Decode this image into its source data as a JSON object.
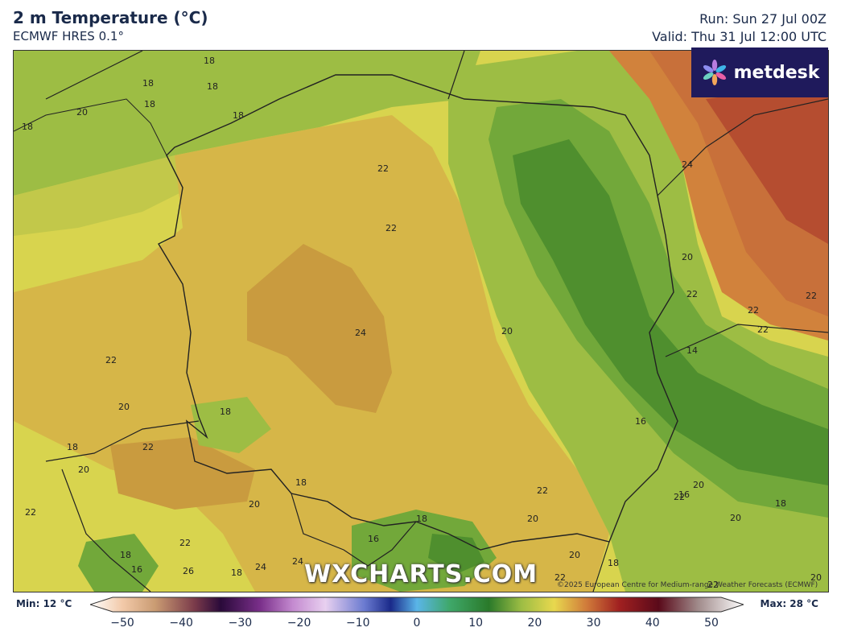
{
  "header": {
    "title": "2 m Temperature (°C)",
    "model": "ECMWF HRES 0.1°",
    "run": "Run: Sun 27 Jul 00Z",
    "valid": "Valid: Thu 31 Jul 12:00 UTC"
  },
  "logo": {
    "text": "metdesk"
  },
  "watermark": "WXCHARTS.COM",
  "credit": "©2025 European Centre for Medium-range Weather Forecasts (ECMWF)",
  "colorbar": {
    "min_label": "Min: 12 °C",
    "max_label": "Max: 28 °C",
    "ticks": [
      "−50",
      "−40",
      "−30",
      "−20",
      "−10",
      "0",
      "10",
      "20",
      "30",
      "40",
      "50"
    ]
  },
  "map_labels": [
    "18",
    "18",
    "18",
    "18",
    "20",
    "18",
    "18",
    "22",
    "22",
    "24",
    "22",
    "20",
    "22",
    "20",
    "18",
    "18",
    "22",
    "20",
    "18",
    "20",
    "20",
    "22",
    "16",
    "24",
    "18",
    "22",
    "18",
    "20",
    "22",
    "16",
    "18",
    "24",
    "20",
    "22",
    "22",
    "22",
    "22",
    "22",
    "20",
    "16",
    "14",
    "16",
    "18",
    "24",
    "26",
    "18",
    "20",
    "20",
    "22"
  ],
  "colors": {
    "t14": "#4f8f2e",
    "t16": "#72a83a",
    "t18": "#9dbd44",
    "t20": "#d8d44e",
    "t22": "#d6b648",
    "t24": "#c99b3f",
    "t26": "#c8703a",
    "t28": "#b54d30"
  }
}
